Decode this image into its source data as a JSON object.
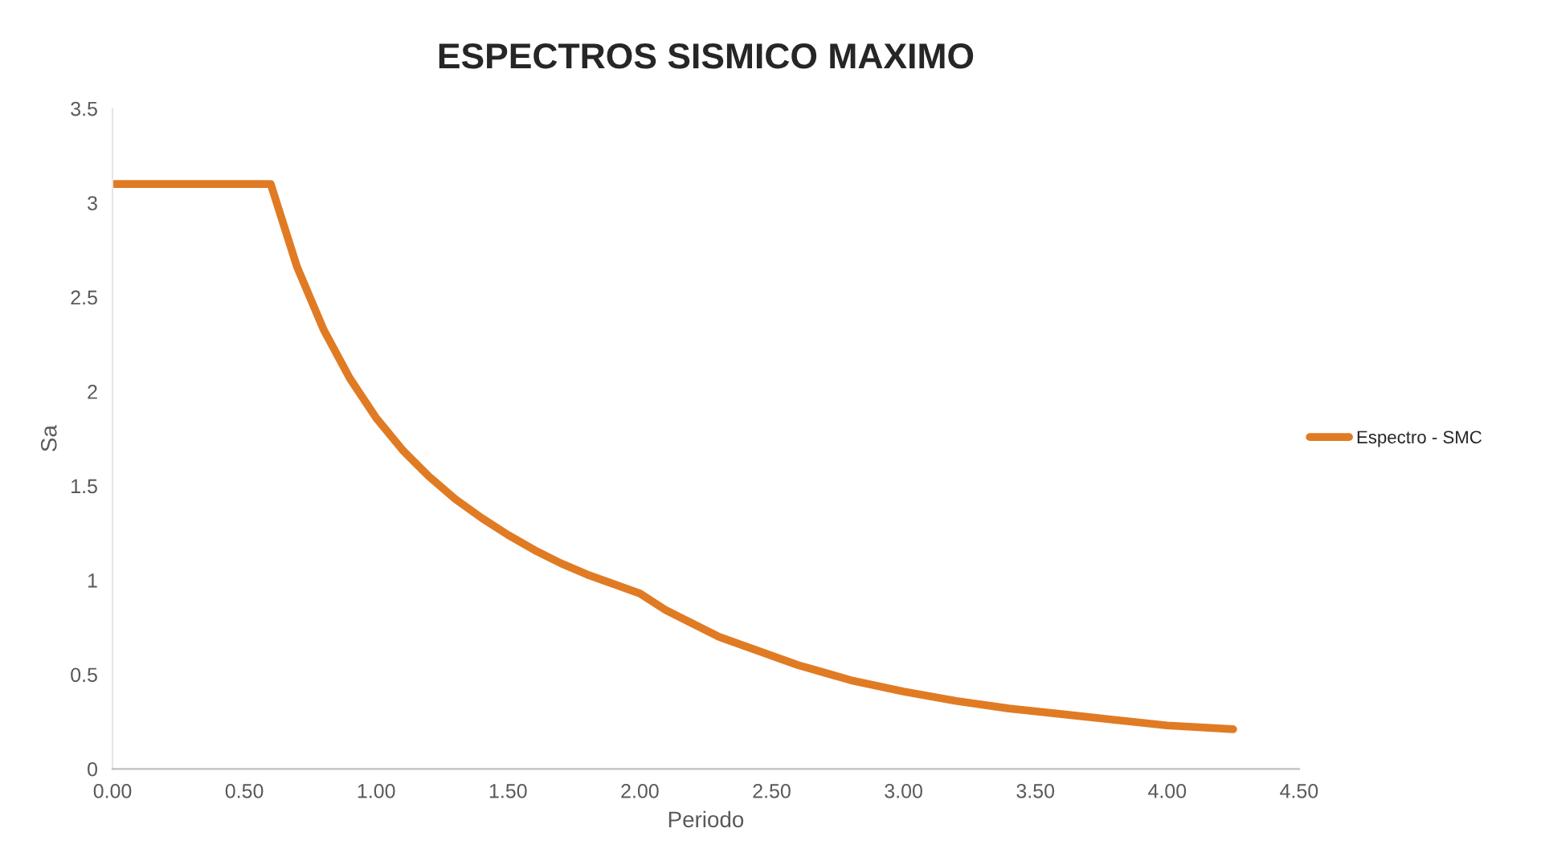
{
  "chart_data": {
    "type": "line",
    "title": "ESPECTROS SISMICO MAXIMO",
    "xlabel": "Periodo",
    "ylabel": "Sa",
    "x": [
      0,
      0.6,
      0.7,
      0.8,
      0.9,
      1.0,
      1.1,
      1.2,
      1.3,
      1.4,
      1.5,
      1.6,
      1.7,
      1.8,
      1.9,
      2.0,
      2.1,
      2.2,
      2.3,
      2.4,
      2.5,
      2.6,
      2.7,
      2.8,
      2.9,
      3.0,
      3.2,
      3.4,
      3.6,
      3.8,
      4.0,
      4.25
    ],
    "series": [
      {
        "name": "Espectro - SMC",
        "color": "#e07b24",
        "values": [
          3.1,
          3.1,
          2.66,
          2.33,
          2.07,
          1.86,
          1.69,
          1.55,
          1.43,
          1.33,
          1.24,
          1.16,
          1.09,
          1.03,
          0.98,
          0.93,
          0.84,
          0.77,
          0.7,
          0.65,
          0.6,
          0.55,
          0.51,
          0.47,
          0.44,
          0.41,
          0.36,
          0.32,
          0.29,
          0.26,
          0.23,
          0.21
        ]
      }
    ],
    "xlim": [
      0,
      4.5
    ],
    "xticks": [
      {
        "value": 0,
        "label": "0.00"
      },
      {
        "value": 0.5,
        "label": "0.50"
      },
      {
        "value": 1,
        "label": "1.00"
      },
      {
        "value": 1.5,
        "label": "1.50"
      },
      {
        "value": 2,
        "label": "2.00"
      },
      {
        "value": 2.5,
        "label": "2.50"
      },
      {
        "value": 3,
        "label": "3.00"
      },
      {
        "value": 3.5,
        "label": "3.50"
      },
      {
        "value": 4,
        "label": "4.00"
      },
      {
        "value": 4.5,
        "label": "4.50"
      }
    ],
    "ylim": [
      0,
      3.5
    ],
    "yticks": [
      0,
      0.5,
      1,
      1.5,
      2,
      2.5,
      3,
      3.5
    ],
    "legend": "right",
    "grid": false,
    "marker": "none",
    "line_style": "solid"
  }
}
